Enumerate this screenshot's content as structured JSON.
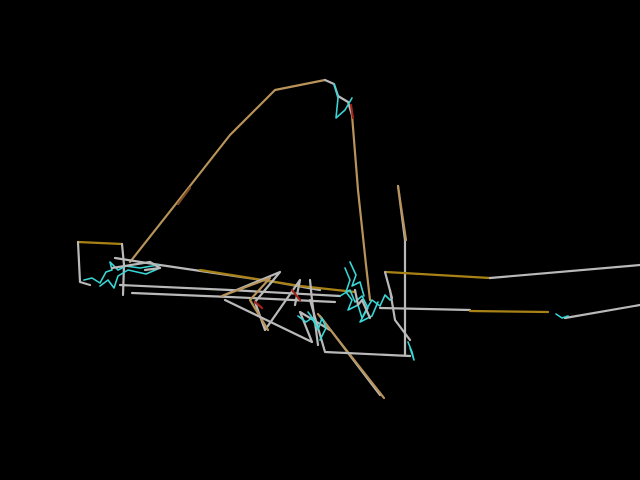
{
  "background_color": "#000000",
  "stroke_colors": {
    "gray": "#b9b9b9",
    "tan": "#b8935a",
    "gold": "#a88216",
    "cyan": "#39d6d6",
    "red": "#a02418",
    "brown": "#7a4a22"
  }
}
